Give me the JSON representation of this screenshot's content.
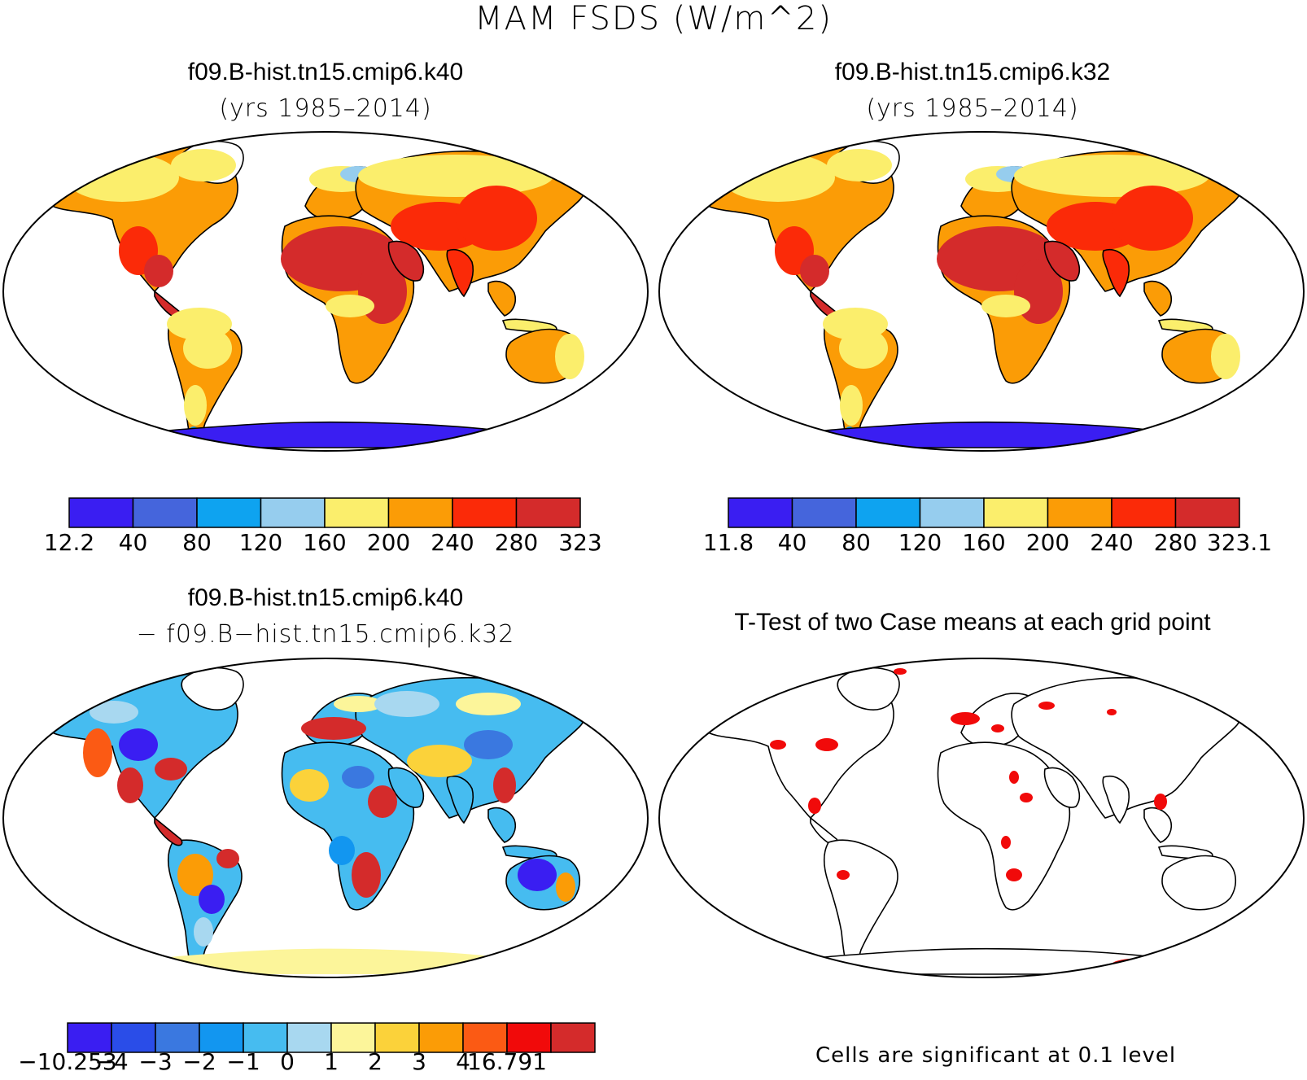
{
  "figure": {
    "title": "MAM FSDS (W/m^2)"
  },
  "panels": [
    {
      "title": "f09.B-hist.tn15.cmip6.k40",
      "subtitle": "(yrs 1985–2014)",
      "colorbar": {
        "labels": [
          "12.2",
          "40",
          "80",
          "120",
          "160",
          "200",
          "240",
          "280",
          "323"
        ],
        "colors": [
          "#3a1ef2",
          "#4565dc",
          "#0ea3f0",
          "#96cdee",
          "#fbee6c",
          "#fb9c06",
          "#fb2a08",
          "#d42b2b"
        ]
      }
    },
    {
      "title": "f09.B-hist.tn15.cmip6.k32",
      "subtitle": "(yrs 1985–2014)",
      "colorbar": {
        "labels": [
          "11.8",
          "40",
          "80",
          "120",
          "160",
          "200",
          "240",
          "280",
          "323.1"
        ],
        "colors": [
          "#3a1ef2",
          "#4565dc",
          "#0ea3f0",
          "#96cdee",
          "#fbee6c",
          "#fb9c06",
          "#fb2a08",
          "#d42b2b"
        ]
      }
    },
    {
      "title": "f09.B-hist.tn15.cmip6.k40",
      "subtitle": "− f09.B−hist.tn15.cmip6.k32",
      "colorbar": {
        "labels": [
          "−10.253",
          "−4",
          "−3",
          "−2",
          "−1",
          "0",
          "1",
          "2",
          "3",
          "4",
          "16.791"
        ],
        "colors": [
          "#3a1ef2",
          "#2a4de8",
          "#3a78e0",
          "#1296f0",
          "#46bcf0",
          "#a8d8f0",
          "#fcf59a",
          "#fbd23a",
          "#fb9c06",
          "#fb5a14",
          "#f10a0a",
          "#d42b2b"
        ]
      }
    },
    {
      "title": "T-Test of two Case means at each grid point",
      "note": "Cells are significant at 0.1 level"
    }
  ]
}
